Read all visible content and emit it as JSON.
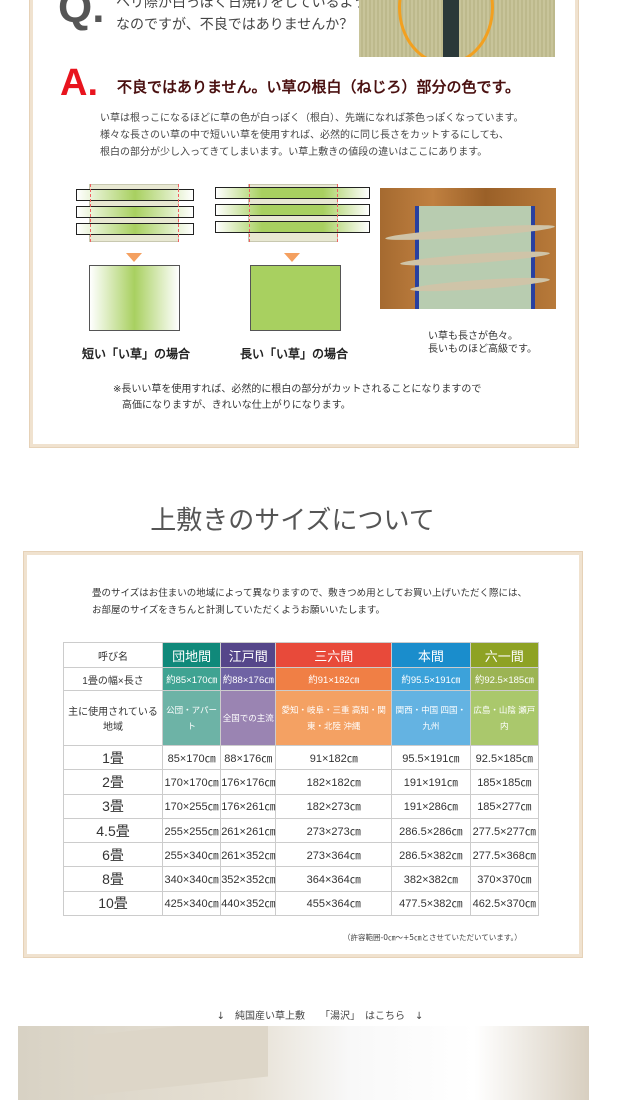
{
  "qa": {
    "q_letter": "Q.",
    "q_line1": "ヘリ際が白っぽく日焼けをしているよう",
    "q_line2": "なのですが、不良ではありませんか？",
    "a_letter": "A.",
    "a_title": "不良ではありません。い草の根白（ねじろ）部分の色です。",
    "a_body": [
      "い草は根っこになるほどに草の色が白っぽく（根白）、先端になれば茶色っぽくなっています。",
      "様々な長さのい草の中で短いい草を使用すれば、必然的に同じ長さをカットするにしても、",
      "根白の部分が少し入ってきてしまいます。い草上敷きの値段の違いはここにあります。"
    ],
    "short_caption": "短い「い草」の場合",
    "long_caption": "長い「い草」の場合",
    "photo_caption": [
      "い草も長さが色々。",
      "長いものほど高級です。"
    ],
    "footnote": [
      "※長いい草を使用すれば、必然的に根白の部分がカットされることになりますので",
      "高価になりますが、きれいな仕上がりになります。"
    ]
  },
  "size_section": {
    "title": "上敷きのサイズについて",
    "intro": [
      "畳のサイズはお住まいの地域によって異なりますので、敷きつめ用としてお買い上げいただく際には、",
      "お部屋のサイズをきちんと計測していただくようお願いいたします。"
    ],
    "row_labels": {
      "name": "呼び名",
      "size": "1畳の幅×長さ",
      "region": "主に使用されている地域"
    },
    "columns": [
      {
        "name": "団地間",
        "size": "約85×170㎝",
        "region": "公団・アパート",
        "colors": [
          "#10897a",
          "#3fa392",
          "#6db3a6"
        ]
      },
      {
        "name": "江戸間",
        "size": "約88×176㎝",
        "region": "全国での主流",
        "colors": [
          "#55468a",
          "#6f63a4",
          "#9a84b2"
        ]
      },
      {
        "name": "三六間",
        "size": "約91×182㎝",
        "region": "愛知・岐阜・三重 高知・関東・北陸 沖縄",
        "colors": [
          "#e84a3a",
          "#f07f45",
          "#f4a163"
        ]
      },
      {
        "name": "本間",
        "size": "約95.5×191㎝",
        "region": "関西・中国 四国・九州",
        "colors": [
          "#1a8dcc",
          "#3ca2da",
          "#64b3e2"
        ]
      },
      {
        "name": "六一間",
        "size": "約92.5×185㎝",
        "region": "広島・山陰 瀬戸内",
        "colors": [
          "#8ea224",
          "#9cb454",
          "#aac86c"
        ]
      }
    ],
    "rows": [
      {
        "label": "1畳",
        "values": [
          "85×170㎝",
          "88×176㎝",
          "91×182㎝",
          "95.5×191㎝",
          "92.5×185㎝"
        ]
      },
      {
        "label": "2畳",
        "values": [
          "170×170㎝",
          "176×176㎝",
          "182×182㎝",
          "191×191㎝",
          "185×185㎝"
        ]
      },
      {
        "label": "3畳",
        "values": [
          "170×255㎝",
          "176×261㎝",
          "182×273㎝",
          "191×286㎝",
          "185×277㎝"
        ]
      },
      {
        "label": "4.5畳",
        "values": [
          "255×255㎝",
          "261×261㎝",
          "273×273㎝",
          "286.5×286㎝",
          "277.5×277㎝"
        ]
      },
      {
        "label": "6畳",
        "values": [
          "255×340㎝",
          "261×352㎝",
          "273×364㎝",
          "286.5×382㎝",
          "277.5×368㎝"
        ]
      },
      {
        "label": "8畳",
        "values": [
          "340×340㎝",
          "352×352㎝",
          "364×364㎝",
          "382×382㎝",
          "370×370㎝"
        ]
      },
      {
        "label": "10畳",
        "values": [
          "425×340㎝",
          "440×352㎝",
          "455×364㎝",
          "477.5×382㎝",
          "462.5×370㎝"
        ]
      }
    ],
    "tolerance": "（許容範囲-0㎝～+5㎝とさせていただいています。）"
  },
  "product_link": "↓　純国産い草上敷　　「湯沢」　はこちら　↓"
}
